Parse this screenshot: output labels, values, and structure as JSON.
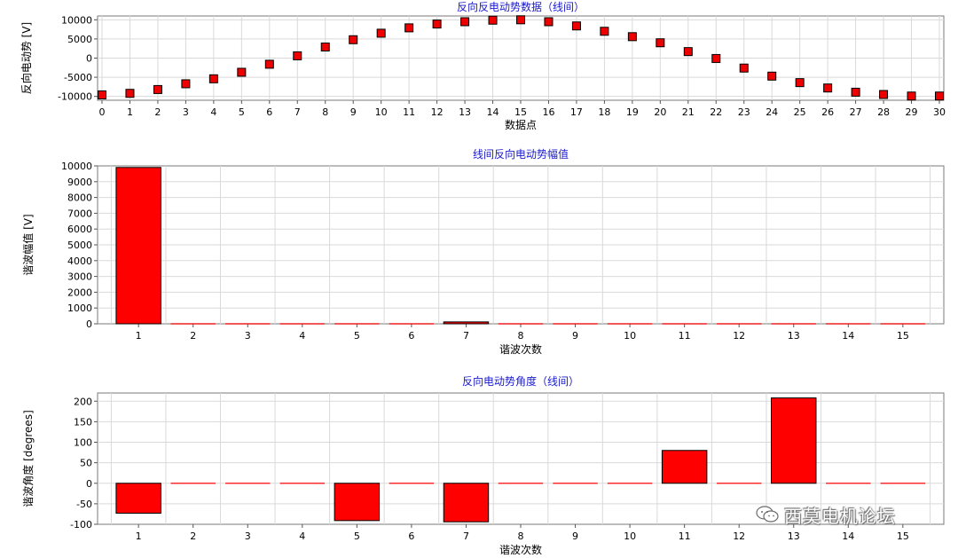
{
  "watermark": {
    "text": "西莫电机论坛",
    "icon": "wechat-icon"
  },
  "chart_data": [
    {
      "type": "scatter",
      "title": "反向反电动势数据（线间）",
      "xlabel": "数据点",
      "ylabel": "反向电动势 [V]",
      "xlim": [
        0,
        30
      ],
      "ylim": [
        -11000,
        11000
      ],
      "xticks": [
        0,
        1,
        2,
        3,
        4,
        5,
        6,
        7,
        8,
        9,
        10,
        11,
        12,
        13,
        14,
        15,
        16,
        17,
        18,
        19,
        20,
        21,
        22,
        23,
        24,
        25,
        26,
        27,
        28,
        29,
        30
      ],
      "yticks": [
        -10000,
        -5000,
        0,
        5000,
        10000
      ],
      "grid": true,
      "marker_color": "#ee0000",
      "x": [
        0,
        1,
        2,
        3,
        4,
        5,
        6,
        7,
        8,
        9,
        10,
        11,
        12,
        13,
        14,
        15,
        16,
        17,
        18,
        19,
        20,
        21,
        22,
        23,
        24,
        25,
        26,
        27,
        28,
        29,
        30
      ],
      "y": [
        -9600,
        -9200,
        -8200,
        -6700,
        -5400,
        -3700,
        -1600,
        600,
        2900,
        4800,
        6500,
        7900,
        8900,
        9500,
        9900,
        10000,
        9500,
        8400,
        7000,
        5600,
        4000,
        1700,
        -100,
        -2600,
        -4700,
        -6400,
        -7800,
        -8900,
        -9500,
        -9900,
        -9900
      ]
    },
    {
      "type": "bar",
      "title": "线间反向电动势幅值",
      "xlabel": "谐波次数",
      "ylabel": "谐波幅值 [V]",
      "ylim": [
        0,
        10000
      ],
      "yticks": [
        0,
        1000,
        2000,
        3000,
        4000,
        5000,
        6000,
        7000,
        8000,
        9000,
        10000
      ],
      "grid": true,
      "bar_color": "#ff0000",
      "categories": [
        "1",
        "2",
        "3",
        "4",
        "5",
        "6",
        "7",
        "8",
        "9",
        "10",
        "11",
        "12",
        "13",
        "14",
        "15"
      ],
      "values": [
        9900,
        10,
        10,
        10,
        110,
        10,
        120,
        10,
        10,
        10,
        25,
        10,
        20,
        10,
        10
      ]
    },
    {
      "type": "bar",
      "title": "反向电动势角度（线间）",
      "xlabel": "谐波次数",
      "ylabel": "谐波角度 [degrees]",
      "ylim": [
        -100,
        220
      ],
      "yticks": [
        -100,
        -50,
        0,
        50,
        100,
        150,
        200
      ],
      "grid": true,
      "bar_color": "#ff0000",
      "categories": [
        "1",
        "2",
        "3",
        "4",
        "5",
        "6",
        "7",
        "8",
        "9",
        "10",
        "11",
        "12",
        "13",
        "14",
        "15"
      ],
      "values": [
        -73,
        0,
        0,
        0,
        -91,
        0,
        -94,
        0,
        0,
        0,
        80,
        0,
        208,
        0,
        0
      ]
    }
  ]
}
